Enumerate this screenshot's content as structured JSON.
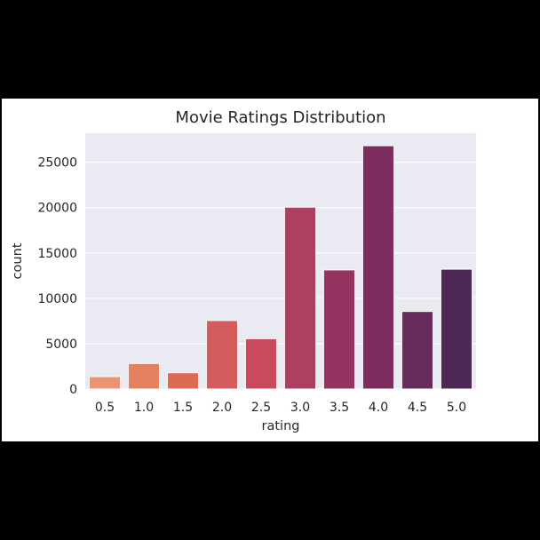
{
  "chart_data": {
    "type": "bar",
    "title": "Movie Ratings Distribution",
    "xlabel": "rating",
    "ylabel": "count",
    "categories": [
      "0.5",
      "1.0",
      "1.5",
      "2.0",
      "2.5",
      "3.0",
      "3.5",
      "4.0",
      "4.5",
      "5.0"
    ],
    "values": [
      1370,
      2810,
      1790,
      7550,
      5550,
      20050,
      13130,
      26820,
      8550,
      13210
    ],
    "ylim": [
      0,
      28200
    ],
    "yticks": [
      0,
      5000,
      10000,
      15000,
      20000,
      25000
    ],
    "ytick_labels": [
      "0",
      "5000",
      "10000",
      "15000",
      "20000",
      "25000"
    ],
    "grid": true,
    "background": "#EAEAF2",
    "colors": [
      "#EB9474",
      "#E4805F",
      "#DD6B54",
      "#D35C5C",
      "#C94A5E",
      "#AF3F5F",
      "#943460",
      "#7D2E5E",
      "#662C5B",
      "#4E2955"
    ]
  }
}
